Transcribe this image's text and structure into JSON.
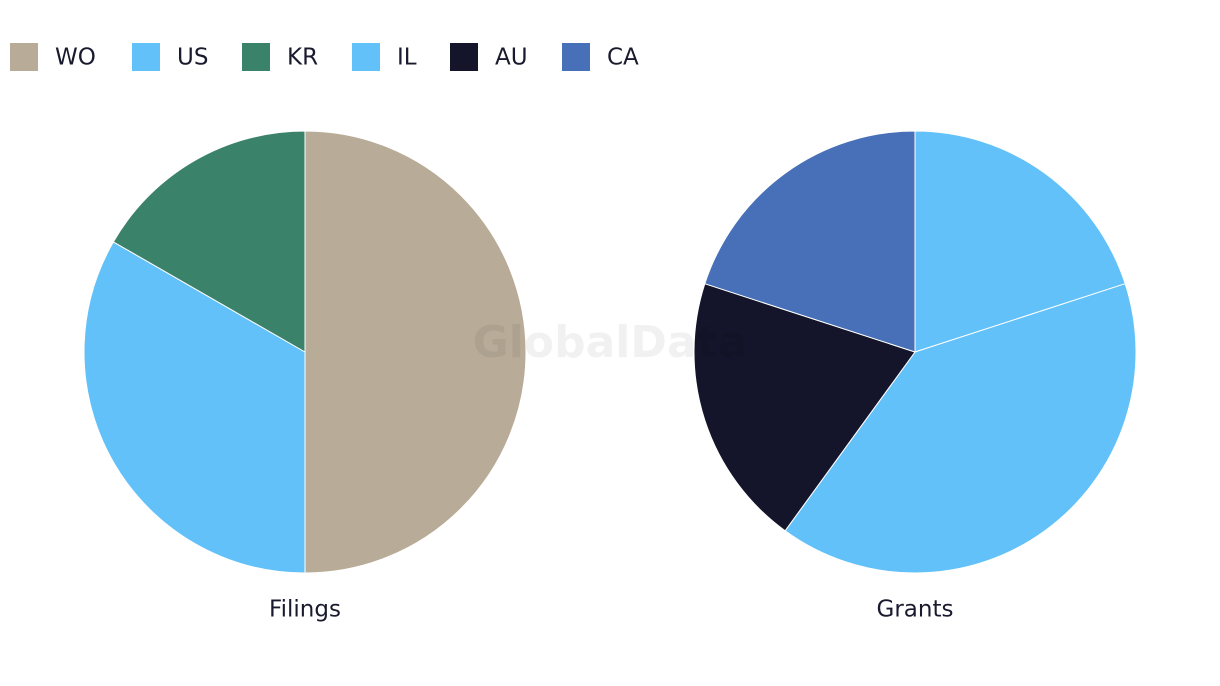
{
  "legend": [
    {
      "name": "WO",
      "color": "#b8ab98"
    },
    {
      "name": "US",
      "color": "#62c1f9"
    },
    {
      "name": "KR",
      "color": "#3a826a"
    },
    {
      "name": "IL",
      "color": "#62c1f9"
    },
    {
      "name": "AU",
      "color": "#14152a"
    },
    {
      "name": "CA",
      "color": "#4770b8"
    }
  ],
  "watermark": "GlobalData",
  "chart_data": [
    {
      "type": "pie",
      "title": "Filings",
      "categories": [
        "WO",
        "US",
        "KR"
      ],
      "values": [
        50,
        33.3,
        16.7
      ],
      "colors": [
        "#b8ab98",
        "#62c1f9",
        "#3a826a"
      ]
    },
    {
      "type": "pie",
      "title": "Grants",
      "categories": [
        "US",
        "IL",
        "AU",
        "CA"
      ],
      "values": [
        20,
        40,
        20,
        20
      ],
      "colors": [
        "#62c1f9",
        "#62c1f9",
        "#14152a",
        "#4770b8"
      ]
    }
  ]
}
